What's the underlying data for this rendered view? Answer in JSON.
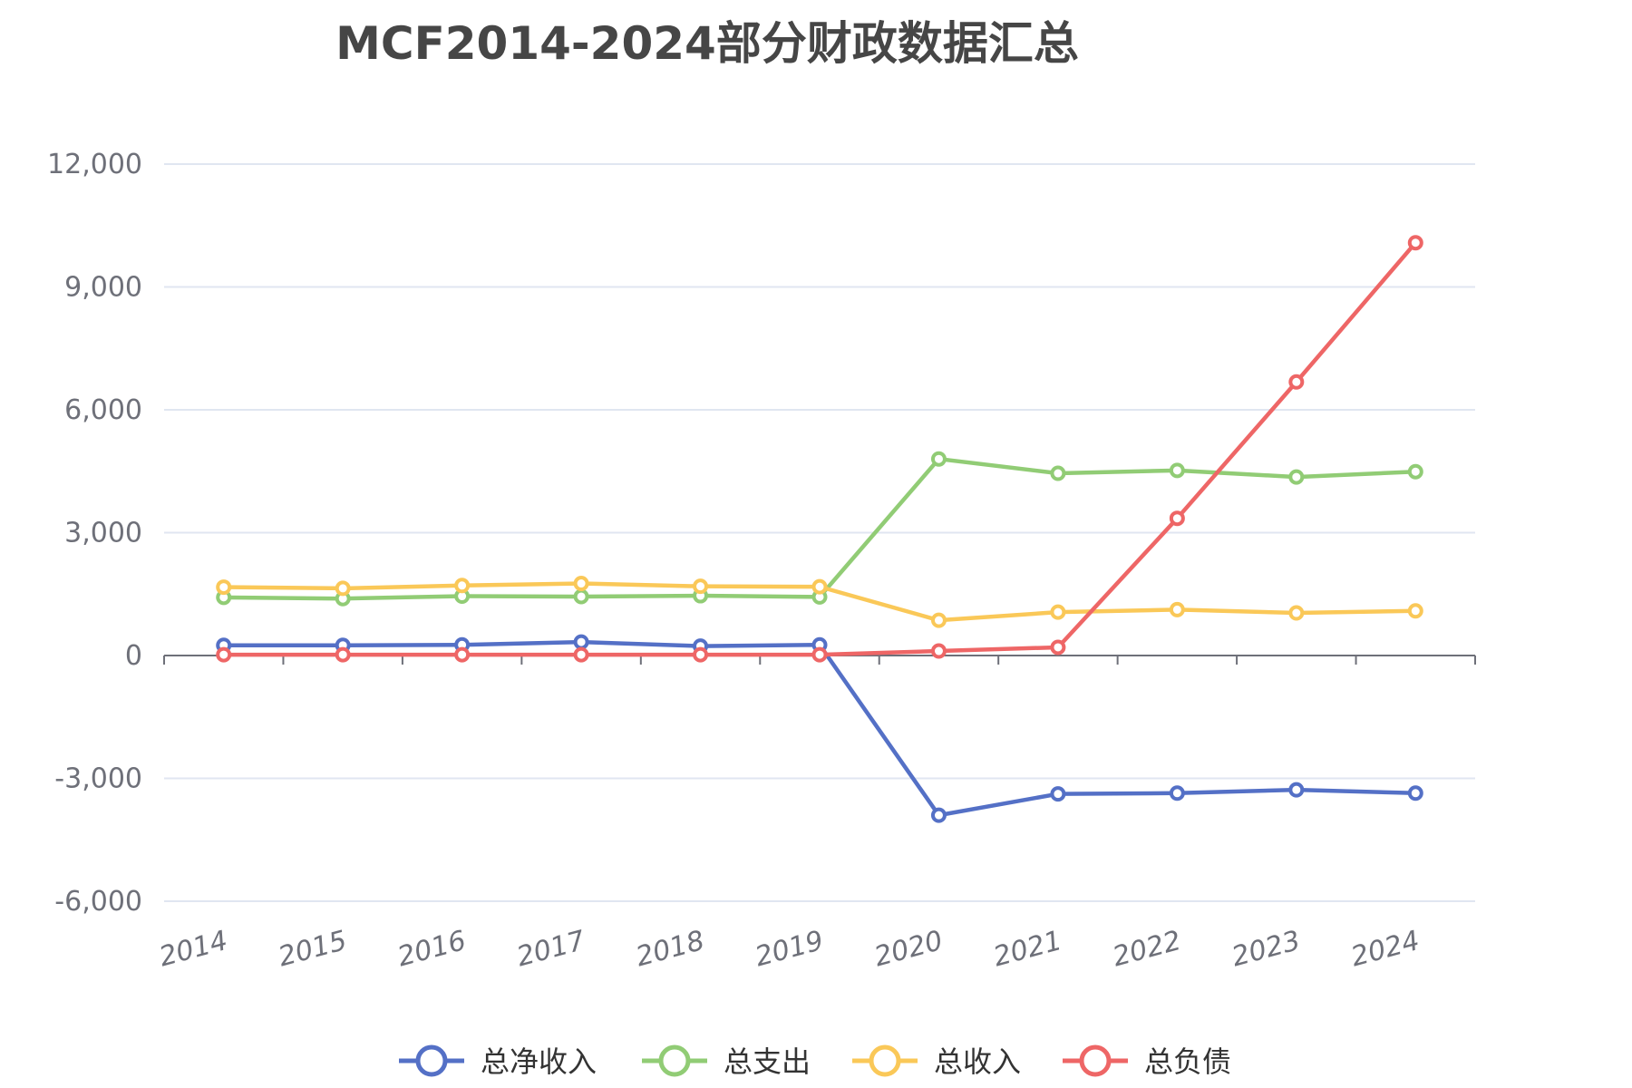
{
  "chart_data": {
    "type": "line",
    "title": "MCF2014-2024部分财政数据汇总",
    "x": [
      "2014",
      "2015",
      "2016",
      "2017",
      "2018",
      "2019",
      "2020",
      "2021",
      "2022",
      "2023",
      "2024"
    ],
    "ylim": [
      -6000,
      12000
    ],
    "yticks": [
      "12,000",
      "9,000",
      "6,000",
      "3,000",
      "0",
      "-3,000",
      "-6,000"
    ],
    "ytick_values": [
      12000,
      9000,
      6000,
      3000,
      0,
      -3000,
      -6000
    ],
    "grid": true,
    "legend_position": "bottom",
    "series": [
      {
        "name": "总净收入",
        "color": "#5470c6",
        "values": [
          250,
          250,
          260,
          330,
          230,
          260,
          -3900,
          -3380,
          -3360,
          -3280,
          -3360
        ]
      },
      {
        "name": "总支出",
        "color": "#91cc75",
        "values": [
          1420,
          1390,
          1450,
          1440,
          1460,
          1430,
          4800,
          4450,
          4520,
          4360,
          4490
        ]
      },
      {
        "name": "总收入",
        "color": "#fac858",
        "values": [
          1670,
          1640,
          1710,
          1760,
          1690,
          1680,
          860,
          1060,
          1120,
          1040,
          1090
        ]
      },
      {
        "name": "总负债",
        "color": "#ee6666",
        "values": [
          20,
          20,
          20,
          20,
          20,
          20,
          110,
          200,
          3350,
          6680,
          10080
        ]
      }
    ]
  }
}
